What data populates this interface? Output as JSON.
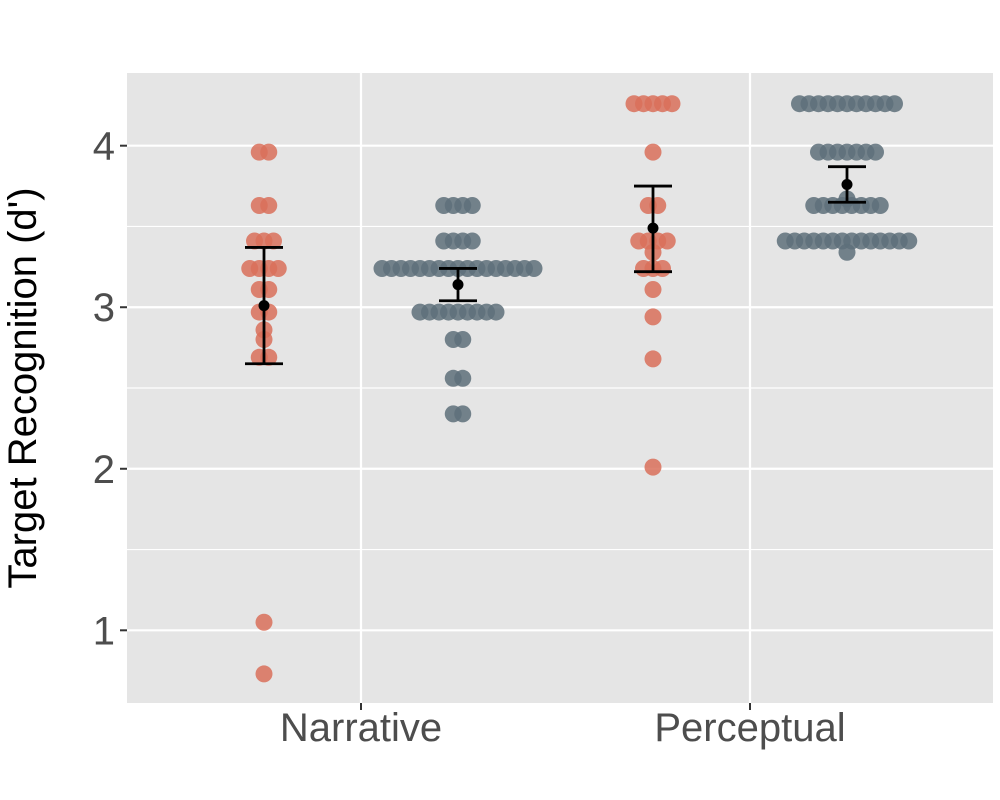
{
  "chart_data": {
    "type": "scatter",
    "title": "",
    "xlabel": "",
    "ylabel": "Target Recognition (d')",
    "categories": [
      "Narrative",
      "Perceptual"
    ],
    "yticks": [
      1,
      2,
      3,
      4
    ],
    "ylim": [
      0.55,
      4.45
    ],
    "grid": true,
    "legend": "none",
    "colors": {
      "group_a": "#d9705a",
      "group_b": "#5e707a",
      "panel": "#e5e5e5",
      "grid": "#ffffff",
      "summary": "#000000"
    },
    "series": [
      {
        "category": "Narrative",
        "color_key": "group_a",
        "values": [
          3.96,
          3.96,
          3.63,
          3.63,
          3.41,
          3.41,
          3.41,
          3.24,
          3.24,
          3.24,
          3.24,
          3.11,
          3.11,
          2.97,
          2.97,
          2.86,
          2.8,
          2.69,
          2.69,
          1.05,
          0.73
        ],
        "mean": 3.01,
        "ci_low": 2.65,
        "ci_high": 3.37
      },
      {
        "category": "Narrative",
        "color_key": "group_b",
        "values": [
          3.63,
          3.63,
          3.63,
          3.63,
          3.41,
          3.41,
          3.41,
          3.41,
          3.24,
          3.24,
          3.24,
          3.24,
          3.24,
          3.24,
          3.24,
          3.24,
          3.24,
          3.24,
          3.24,
          3.24,
          3.24,
          3.24,
          3.24,
          3.24,
          3.24,
          2.97,
          2.97,
          2.97,
          2.97,
          2.97,
          2.97,
          2.97,
          2.97,
          2.97,
          2.8,
          2.8,
          2.56,
          2.56,
          2.34,
          2.34
        ],
        "mean": 3.14,
        "ci_low": 3.04,
        "ci_high": 3.24
      },
      {
        "category": "Perceptual",
        "color_key": "group_a",
        "values": [
          4.26,
          4.26,
          4.26,
          4.26,
          4.26,
          3.96,
          3.63,
          3.63,
          3.41,
          3.41,
          3.41,
          3.41,
          3.34,
          3.24,
          3.24,
          3.24,
          3.11,
          2.94,
          2.68,
          2.01
        ],
        "mean": 3.49,
        "ci_low": 3.22,
        "ci_high": 3.75
      },
      {
        "category": "Perceptual",
        "color_key": "group_b",
        "values": [
          4.26,
          4.26,
          4.26,
          4.26,
          4.26,
          4.26,
          4.26,
          4.26,
          4.26,
          4.26,
          4.26,
          3.96,
          3.96,
          3.96,
          3.96,
          3.96,
          3.96,
          3.96,
          3.67,
          3.63,
          3.63,
          3.63,
          3.63,
          3.63,
          3.63,
          3.63,
          3.63,
          3.41,
          3.41,
          3.41,
          3.41,
          3.41,
          3.41,
          3.41,
          3.41,
          3.41,
          3.41,
          3.41,
          3.41,
          3.41,
          3.41,
          3.34
        ],
        "mean": 3.76,
        "ci_low": 3.65,
        "ci_high": 3.87
      }
    ]
  }
}
